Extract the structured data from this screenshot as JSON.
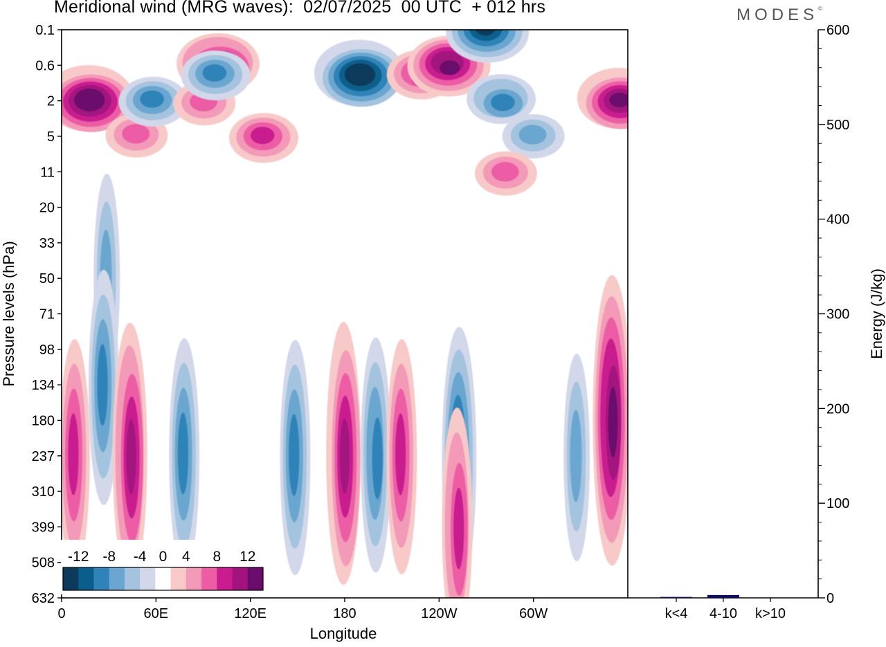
{
  "title": "Meridional wind (MRG waves):  02/07/2025  00 UTC  + 012 hrs",
  "brand": "MODES",
  "chart_data": [
    {
      "type": "heatmap",
      "title": "Meridional wind (MRG waves):  02/07/2025  00 UTC  + 012 hrs",
      "xlabel": "Longitude",
      "ylabel": "Pressure levels (hPa)",
      "x_ticks": [
        "0",
        "60E",
        "120E",
        "180",
        "120W",
        "60W"
      ],
      "y_ticks": [
        "0.1",
        "0.6",
        "2",
        "5",
        "11",
        "20",
        "33",
        "50",
        "71",
        "98",
        "134",
        "180",
        "237",
        "310",
        "399",
        "508",
        "632"
      ],
      "colorbar": {
        "tick_labels": [
          "-12",
          "-8",
          "-4",
          "0",
          "4",
          "8",
          "12"
        ],
        "levels": [
          -14,
          -12,
          -10,
          -8,
          -6,
          -4,
          -2,
          2,
          4,
          6,
          8,
          10,
          12,
          14
        ],
        "colors": [
          "#0d3a5b",
          "#0b5e8c",
          "#2f83b8",
          "#6aa6cf",
          "#a3c3df",
          "#d2d8ea",
          "#ffffff",
          "#f8c9c9",
          "#f39ab8",
          "#ec5da6",
          "#c91c8e",
          "#a3137f",
          "#6a0c6c"
        ]
      },
      "features": [
        {
          "lon": 18,
          "level": "2",
          "value": 14
        },
        {
          "lon": 48,
          "level": "5",
          "value": 6
        },
        {
          "lon": 58,
          "level": "2",
          "value": -8
        },
        {
          "lon": 90,
          "level": "2",
          "value": 6
        },
        {
          "lon": 100,
          "level": "0.6",
          "value": 12
        },
        {
          "lon": 98,
          "level": "1",
          "value": -8
        },
        {
          "lon": 128,
          "level": "5",
          "value": 8
        },
        {
          "lon": 190,
          "level": "1",
          "value": -14
        },
        {
          "lon": 229,
          "level": "1",
          "value": 8
        },
        {
          "lon": 246,
          "level": "0.6",
          "value": 12
        },
        {
          "lon": 270,
          "level": "0.1",
          "value": -12
        },
        {
          "lon": 280,
          "level": "2",
          "value": -8
        },
        {
          "lon": 300,
          "level": "5",
          "value": -6
        },
        {
          "lon": 282,
          "level": "11",
          "value": 6
        },
        {
          "lon": 355,
          "level": "2",
          "value": 12
        },
        {
          "lon": 29,
          "level": "50",
          "value": -6
        },
        {
          "lon": 8,
          "level": "237",
          "value": 8
        },
        {
          "lon": 26,
          "level": "134",
          "value": -8
        },
        {
          "lon": 44,
          "level": "237",
          "value": 10
        },
        {
          "lon": 78,
          "level": "237",
          "value": -8
        },
        {
          "lon": 148,
          "level": "237",
          "value": -8
        },
        {
          "lon": 180,
          "level": "237",
          "value": 10
        },
        {
          "lon": 200,
          "level": "237",
          "value": -8
        },
        {
          "lon": 216,
          "level": "237",
          "value": 8
        },
        {
          "lon": 252,
          "level": "237",
          "value": -10
        },
        {
          "lon": 252,
          "level": "399",
          "value": 8
        },
        {
          "lon": 350,
          "level": "180",
          "value": 12
        },
        {
          "lon": 327,
          "level": "237",
          "value": -6
        }
      ]
    },
    {
      "type": "bar",
      "categories": [
        "k<4",
        "4-10",
        "k>10"
      ],
      "values": [
        1,
        3,
        0
      ],
      "ylabel": "Energy (J/kg)",
      "ylim": [
        0,
        600
      ],
      "y_ticks": [
        "0",
        "100",
        "200",
        "300",
        "400",
        "500",
        "600"
      ],
      "bar_color": "#0d0d5b"
    }
  ]
}
